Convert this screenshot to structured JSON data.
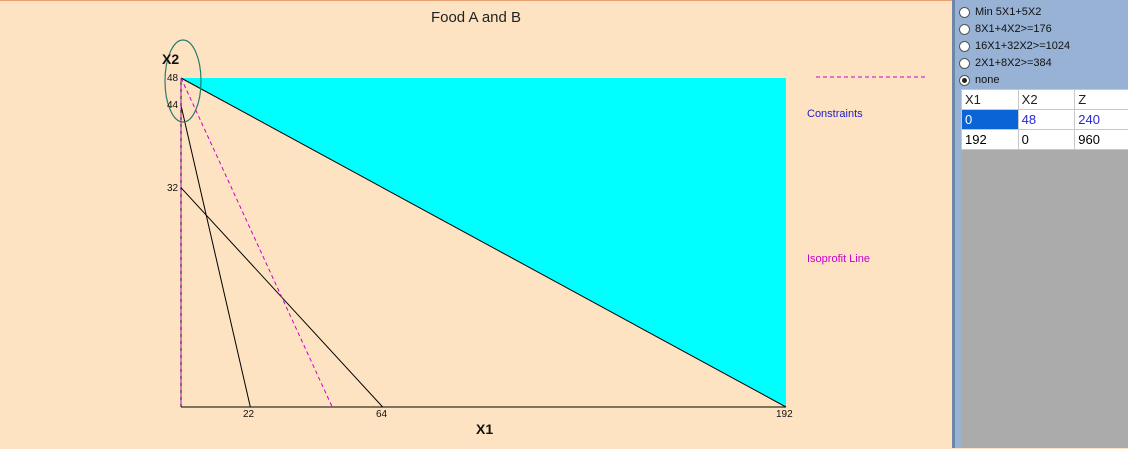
{
  "chart_data": {
    "type": "line",
    "title": "Food A and B",
    "xlabel": "X1",
    "ylabel": "X2",
    "x_ticks": [
      22,
      64,
      192
    ],
    "y_ticks": [
      32,
      44,
      48
    ],
    "xlim": [
      0,
      192
    ],
    "ylim": [
      0,
      48
    ],
    "series": [
      {
        "name": "",
        "x": [
          0,
          22
        ],
        "y": [
          44,
          0
        ],
        "color": "#000000",
        "style": "solid"
      },
      {
        "name": "",
        "x": [
          0,
          64
        ],
        "y": [
          32,
          0
        ],
        "color": "#000000",
        "style": "solid"
      },
      {
        "name": "",
        "x": [
          0,
          192
        ],
        "y": [
          48,
          0
        ],
        "color": "#000000",
        "style": "solid"
      },
      {
        "name": "Isoprofit Line",
        "x": [
          0,
          48
        ],
        "y": [
          48,
          0
        ],
        "color": "#cc00cc",
        "style": "dashed"
      }
    ],
    "feasible_region": {
      "x": [
        0,
        192,
        192
      ],
      "y": [
        48,
        48,
        0
      ],
      "color": "#00ffff"
    },
    "highlight_point": {
      "x": 0,
      "y": 48,
      "color": "#2a7a6a"
    },
    "legend": [
      {
        "label": "Constraints",
        "color": "#2020cc"
      },
      {
        "label": "Isoprofit Line",
        "color": "#cc00cc"
      }
    ]
  },
  "panel": {
    "radios": [
      {
        "label": "Min 5X1+5X2",
        "checked": false
      },
      {
        "label": "8X1+4X2>=176",
        "checked": false
      },
      {
        "label": "16X1+32X2>=1024",
        "checked": false
      },
      {
        "label": "2X1+8X2>=384",
        "checked": false
      },
      {
        "label": "none",
        "checked": true
      }
    ],
    "table": {
      "headers": [
        "X1",
        "X2",
        "Z"
      ],
      "rows": [
        [
          "0",
          "48",
          "240"
        ],
        [
          "192",
          "0",
          "960"
        ]
      ]
    }
  }
}
